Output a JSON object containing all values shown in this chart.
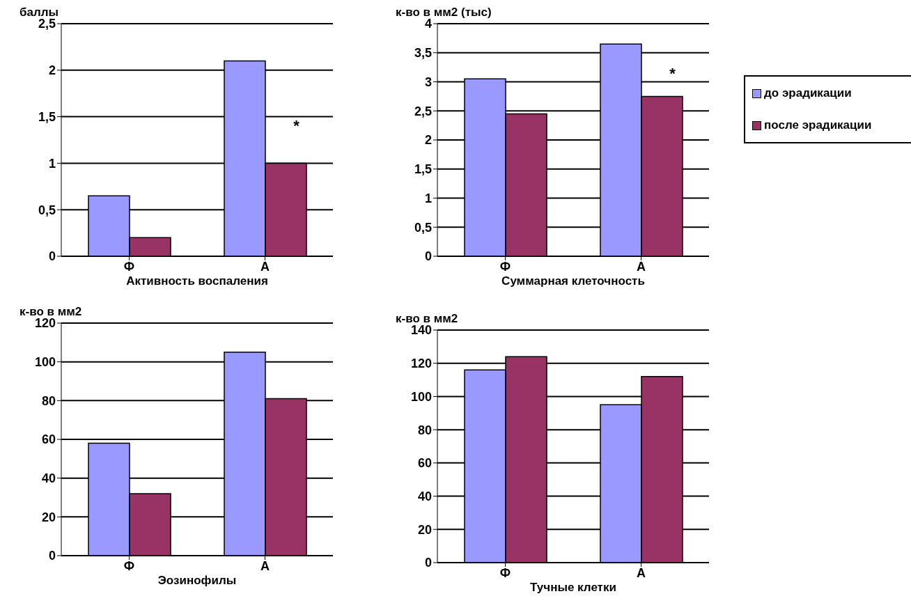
{
  "chart_data": [
    {
      "type": "bar",
      "xlabel": "Активность воспаления",
      "ylabel": "баллы",
      "categories": [
        "Ф",
        "А"
      ],
      "series": [
        {
          "color": "#9999ff",
          "values": [
            0.65,
            2.1
          ]
        },
        {
          "color": "#993366",
          "values": [
            0.2,
            1.0
          ]
        }
      ],
      "ylim": [
        0,
        2.5
      ],
      "yticks": [
        0,
        {
          "value": 0.5,
          "label": "0,5"
        },
        1,
        {
          "value": 1.5,
          "label": "1,5"
        },
        2,
        {
          "value": 2.5,
          "label": "2,5"
        }
      ],
      "grid": "y",
      "legend": false,
      "annotations": [
        {
          "text": "*",
          "x": "А",
          "y": 1.35
        }
      ]
    },
    {
      "type": "bar",
      "xlabel": "Суммарная клеточность",
      "ylabel": "к-во в мм2 (тыс)",
      "categories": [
        "Ф",
        "А"
      ],
      "series": [
        {
          "name": "до эрадикации",
          "color": "#9999ff",
          "values": [
            3.05,
            3.65
          ]
        },
        {
          "name": "после эрадикации",
          "color": "#993366",
          "values": [
            2.45,
            2.75
          ]
        }
      ],
      "ylim": [
        0,
        4
      ],
      "yticks": [
        0,
        {
          "value": 0.5,
          "label": "0,5"
        },
        1,
        {
          "value": 1.5,
          "label": "1,5"
        },
        2,
        {
          "value": 2.5,
          "label": "2,5"
        },
        3,
        {
          "value": 3.5,
          "label": "3,5"
        },
        4
      ],
      "grid": "y",
      "legend": "right",
      "annotations": [
        {
          "text": "*",
          "x": "А",
          "y": 3.05
        }
      ]
    },
    {
      "type": "bar",
      "xlabel": "Эозинофилы",
      "ylabel": "к-во в мм2",
      "categories": [
        "Ф",
        "А"
      ],
      "series": [
        {
          "color": "#9999ff",
          "values": [
            58,
            105
          ]
        },
        {
          "color": "#993366",
          "values": [
            32,
            81
          ]
        }
      ],
      "ylim": [
        0,
        120
      ],
      "yticks": [
        0,
        20,
        40,
        60,
        80,
        100,
        120
      ],
      "grid": "y",
      "legend": false
    },
    {
      "type": "bar",
      "xlabel": "Тучные клетки",
      "ylabel": "к-во в мм2",
      "categories": [
        "Ф",
        "А"
      ],
      "series": [
        {
          "color": "#9999ff",
          "values": [
            116,
            95
          ]
        },
        {
          "color": "#993366",
          "values": [
            124,
            112
          ]
        }
      ],
      "ylim": [
        0,
        140
      ],
      "yticks": [
        0,
        20,
        40,
        60,
        80,
        100,
        120,
        140
      ],
      "grid": "y",
      "legend": false
    }
  ]
}
